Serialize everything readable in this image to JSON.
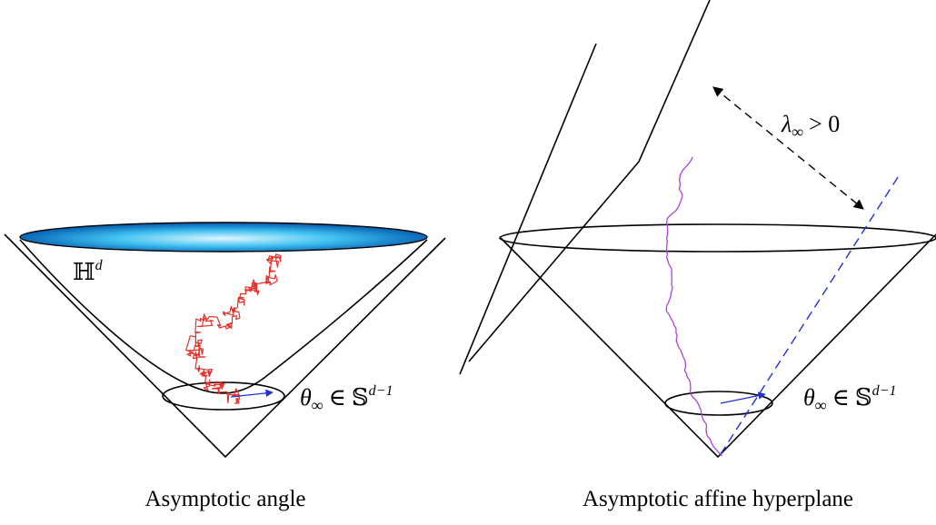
{
  "left_panel": {
    "caption": "Asymptotic angle",
    "space_label": {
      "symbol": "ℍ",
      "superscript": "d"
    },
    "boundary_label": {
      "theta": "θ",
      "subscript": "∞",
      "relation": "∈",
      "sphere": "𝕊",
      "superscript": "d−1"
    }
  },
  "right_panel": {
    "caption": "Asymptotic affine hyperplane",
    "distance_label": {
      "lambda": "λ",
      "subscript": "∞",
      "relation": "> 0"
    },
    "boundary_label": {
      "theta": "θ",
      "subscript": "∞",
      "relation": "∈",
      "sphere": "𝕊",
      "superscript": "d−1"
    }
  },
  "colors": {
    "stroke": "#000000",
    "left_path": "#e8302a",
    "right_path": "#b040e0",
    "dashed": "#2030d8",
    "disc_center": "#dff6ff",
    "disc_mid": "#3ec0f0",
    "disc_edge": "#0a68b8"
  }
}
